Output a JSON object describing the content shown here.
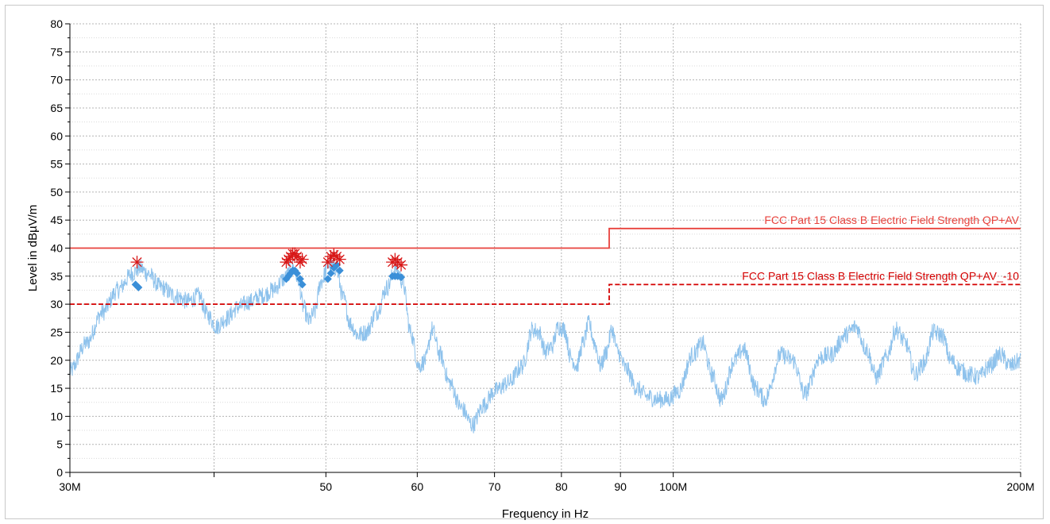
{
  "chart_data": {
    "type": "line",
    "xlabel": "Frequency in Hz",
    "ylabel": "Level in dBµV/m",
    "x_scale": "log",
    "xlim": [
      30,
      200
    ],
    "ylim": [
      0,
      80
    ],
    "grid": true,
    "x_tick_labels": [
      {
        "value": 30,
        "label": "30M"
      },
      {
        "value": 50,
        "label": "50"
      },
      {
        "value": 60,
        "label": "60"
      },
      {
        "value": 70,
        "label": "70"
      },
      {
        "value": 80,
        "label": "80"
      },
      {
        "value": 90,
        "label": "90"
      },
      {
        "value": 100,
        "label": "100M"
      },
      {
        "value": 200,
        "label": "200M"
      }
    ],
    "y_ticks": [
      0,
      5,
      10,
      15,
      20,
      25,
      30,
      35,
      40,
      45,
      50,
      55,
      60,
      65,
      70,
      75,
      80
    ],
    "colors": {
      "spectrum": "#8ec2ec",
      "limit": "#e8423c",
      "limit_margin": "#d40000",
      "final_peaks": "#d81818",
      "final_measurements": "#3a8fd8"
    },
    "limit_lines": [
      {
        "label": "FCC Part 15 Class B Electric Field Strength QP+AV",
        "style": "solid",
        "points": [
          [
            30,
            40
          ],
          [
            88,
            40
          ],
          [
            88,
            43.5
          ],
          [
            200,
            43.5
          ]
        ]
      },
      {
        "label": "FCC Part 15 Class B Electric Field Strength QP+AV_-10",
        "style": "dashed",
        "points": [
          [
            30,
            30
          ],
          [
            88,
            30
          ],
          [
            88,
            33.5
          ],
          [
            200,
            33.5
          ]
        ]
      }
    ],
    "spectrum_anchors": [
      [
        30,
        18
      ],
      [
        31,
        23
      ],
      [
        32,
        28.5
      ],
      [
        33,
        32.5
      ],
      [
        34,
        35.5
      ],
      [
        34.5,
        36.5
      ],
      [
        35,
        35.5
      ],
      [
        36,
        33
      ],
      [
        37,
        31.5
      ],
      [
        38,
        30.5
      ],
      [
        38.8,
        31.5
      ],
      [
        39.5,
        28
      ],
      [
        40.2,
        26
      ],
      [
        41,
        27.5
      ],
      [
        42,
        29.5
      ],
      [
        43,
        30.5
      ],
      [
        44,
        31.5
      ],
      [
        45,
        32.5
      ],
      [
        46,
        34.5
      ],
      [
        46.8,
        36.5
      ],
      [
        47.3,
        34.5
      ],
      [
        47.8,
        29.5
      ],
      [
        48.3,
        27
      ],
      [
        48.9,
        28.5
      ],
      [
        49.5,
        34
      ],
      [
        50.3,
        37
      ],
      [
        51,
        36.5
      ],
      [
        51.8,
        31
      ],
      [
        52.5,
        26.5
      ],
      [
        53.3,
        24.5
      ],
      [
        54.2,
        25
      ],
      [
        55.3,
        28.5
      ],
      [
        56.5,
        33
      ],
      [
        57.5,
        36.5
      ],
      [
        58.3,
        34
      ],
      [
        59.2,
        25
      ],
      [
        60.2,
        19
      ],
      [
        61,
        20
      ],
      [
        61.8,
        25.5
      ],
      [
        62.8,
        21
      ],
      [
        64,
        16
      ],
      [
        65.5,
        11.5
      ],
      [
        67,
        8.5
      ],
      [
        68.5,
        12
      ],
      [
        70,
        14.5
      ],
      [
        72,
        16
      ],
      [
        74,
        19
      ],
      [
        75.5,
        25.5
      ],
      [
        76.5,
        25
      ],
      [
        77.5,
        21.5
      ],
      [
        78.5,
        22.5
      ],
      [
        79.5,
        26
      ],
      [
        80.5,
        25.5
      ],
      [
        81.5,
        20.5
      ],
      [
        82.5,
        19
      ],
      [
        83.5,
        23
      ],
      [
        84.5,
        26.5
      ],
      [
        85.5,
        23
      ],
      [
        86.5,
        19
      ],
      [
        87.5,
        21.5
      ],
      [
        88.5,
        25.5
      ],
      [
        89.5,
        21.5
      ],
      [
        91,
        18.5
      ],
      [
        93,
        15
      ],
      [
        95,
        13.5
      ],
      [
        97,
        13
      ],
      [
        99,
        13
      ],
      [
        101,
        14.5
      ],
      [
        104,
        21
      ],
      [
        106,
        23
      ],
      [
        108,
        17.5
      ],
      [
        110,
        13
      ],
      [
        113,
        20
      ],
      [
        115,
        22
      ],
      [
        118,
        15
      ],
      [
        120,
        13
      ],
      [
        124,
        21
      ],
      [
        127,
        20
      ],
      [
        130,
        14
      ],
      [
        134,
        20.5
      ],
      [
        137,
        21
      ],
      [
        141,
        24.5
      ],
      [
        144,
        26
      ],
      [
        147,
        22
      ],
      [
        150,
        17
      ],
      [
        153,
        20.5
      ],
      [
        156,
        25.5
      ],
      [
        159,
        23
      ],
      [
        162,
        17.5
      ],
      [
        165,
        19.5
      ],
      [
        168,
        25
      ],
      [
        171,
        24.5
      ],
      [
        174,
        20
      ],
      [
        177,
        18.5
      ],
      [
        180,
        17.5
      ],
      [
        184,
        17
      ],
      [
        188,
        19
      ],
      [
        192,
        21
      ],
      [
        196,
        19
      ],
      [
        200,
        20
      ]
    ],
    "final_peaks": [
      [
        34.3,
        37.5
      ],
      [
        46.2,
        37.5
      ],
      [
        46.4,
        38
      ],
      [
        46.6,
        38.5
      ],
      [
        46.8,
        39
      ],
      [
        47,
        39
      ],
      [
        47.2,
        38.5
      ],
      [
        47.5,
        37.5
      ],
      [
        47.7,
        38
      ],
      [
        50.2,
        37.5
      ],
      [
        50.5,
        38.5
      ],
      [
        50.8,
        38.8
      ],
      [
        51.1,
        38.5
      ],
      [
        51.4,
        38
      ],
      [
        57.1,
        37.5
      ],
      [
        57.4,
        38
      ],
      [
        57.7,
        37.5
      ],
      [
        58.1,
        37
      ]
    ],
    "final_measurements": [
      [
        34.2,
        33.5
      ],
      [
        34.4,
        33
      ],
      [
        46.2,
        34.5
      ],
      [
        46.4,
        35
      ],
      [
        46.6,
        35.5
      ],
      [
        46.8,
        36
      ],
      [
        47,
        36
      ],
      [
        47.2,
        35.5
      ],
      [
        47.5,
        34.5
      ],
      [
        47.7,
        33.5
      ],
      [
        50.2,
        34.5
      ],
      [
        50.5,
        35.5
      ],
      [
        50.8,
        36.5
      ],
      [
        51.1,
        37
      ],
      [
        51.4,
        36
      ],
      [
        57.1,
        35
      ],
      [
        57.4,
        35
      ],
      [
        57.7,
        35
      ],
      [
        58.1,
        34.8
      ]
    ]
  }
}
